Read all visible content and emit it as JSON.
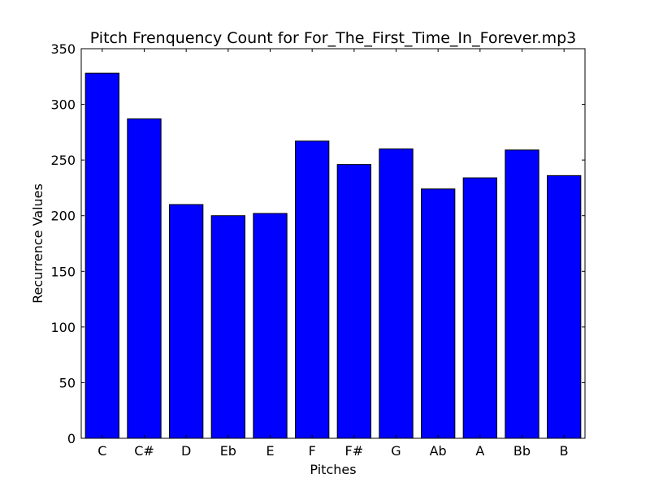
{
  "chart_data": {
    "type": "bar",
    "title": "Pitch Frenquency Count for For_The_First_Time_In_Forever.mp3",
    "xlabel": "Pitches",
    "ylabel": "Recurrence Values",
    "categories": [
      "C",
      "C#",
      "D",
      "Eb",
      "E",
      "F",
      "F#",
      "G",
      "Ab",
      "A",
      "Bb",
      "B"
    ],
    "values": [
      328,
      287,
      210,
      200,
      202,
      267,
      246,
      260,
      224,
      234,
      259,
      236
    ],
    "ylim": [
      0,
      350
    ],
    "yticks": [
      "0",
      "50",
      "100",
      "150",
      "200",
      "250",
      "300",
      "350"
    ],
    "bar_color": "#0000ff",
    "edge_color": "#000000",
    "grid": false,
    "legend": "none"
  }
}
